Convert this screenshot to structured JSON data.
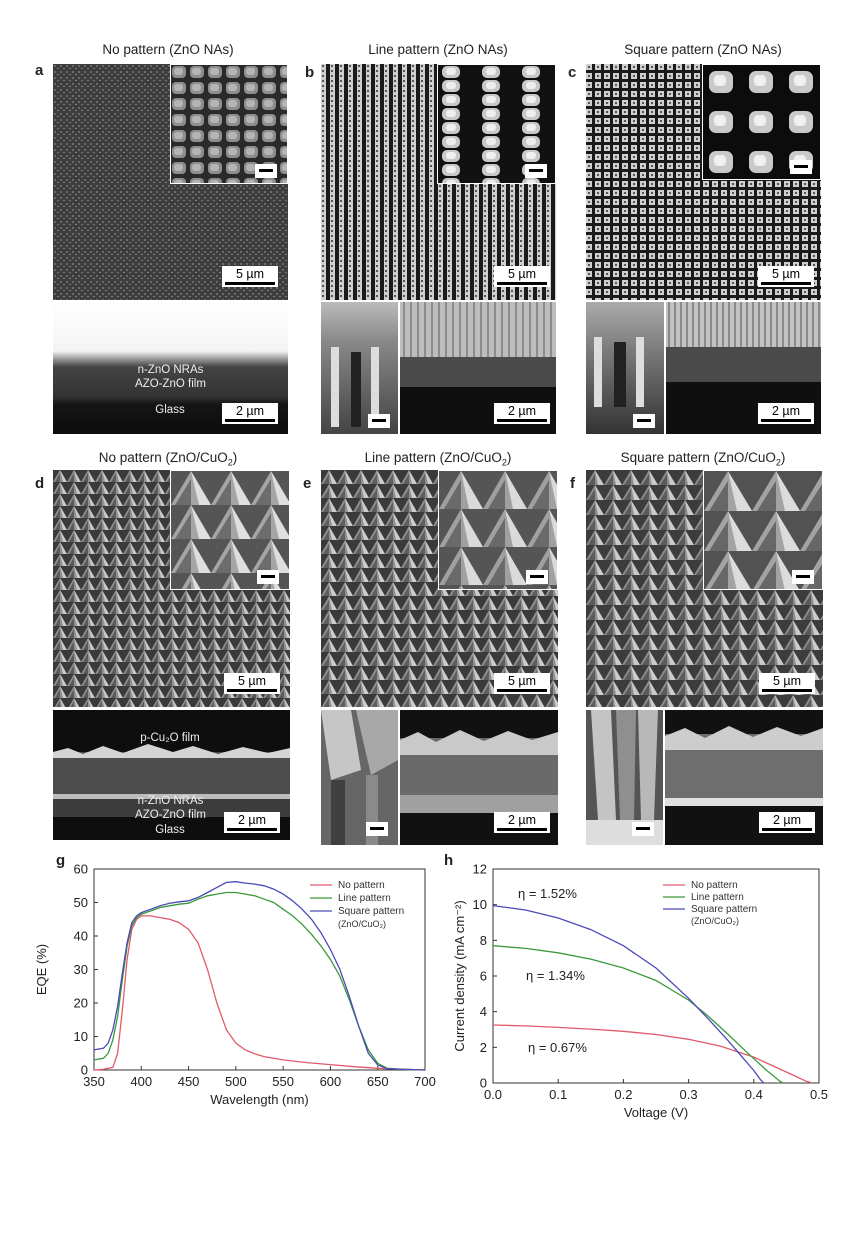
{
  "panels_top": [
    {
      "letter": "a",
      "title": "No pattern (ZnO NAs)",
      "scale_top": "5 µm",
      "scale_bottom": "2 µm",
      "layers": [
        "n-ZnO NRAs",
        "AZO-ZnO film",
        "Glass"
      ]
    },
    {
      "letter": "b",
      "title": "Line pattern (ZnO NAs)",
      "scale_top": "5 µm",
      "scale_bottom": "2 µm"
    },
    {
      "letter": "c",
      "title": "Square pattern (ZnO NAs)",
      "scale_top": "5 µm",
      "scale_bottom": "2 µm"
    }
  ],
  "panels_mid": [
    {
      "letter": "d",
      "title": "No pattern (ZnO/CuO",
      "title_sub": "2",
      "title_end": ")",
      "scale_top": "5 µm",
      "scale_bottom": "2 µm",
      "layers": [
        "p-Cu₂O film",
        "n-ZnO NRAs",
        "AZO-ZnO film",
        "Glass"
      ]
    },
    {
      "letter": "e",
      "title": "Line pattern (ZnO/CuO",
      "title_sub": "2",
      "title_end": ")",
      "scale_top": "5 µm",
      "scale_bottom": "2 µm"
    },
    {
      "letter": "f",
      "title": "Square pattern (ZnO/CuO",
      "title_sub": "2",
      "title_end": ")",
      "scale_top": "5 µm",
      "scale_bottom": "2 µm"
    }
  ],
  "chart_data": [
    {
      "type": "line",
      "panel": "g",
      "xlabel": "Wavelength (nm)",
      "ylabel": "EQE (%)",
      "xlim": [
        350,
        700
      ],
      "ylim": [
        0,
        60
      ],
      "xticks": [
        350,
        400,
        450,
        500,
        550,
        600,
        650,
        700
      ],
      "yticks": [
        0,
        10,
        20,
        30,
        40,
        50,
        60
      ],
      "legend": [
        "No pattern",
        "Line pattern",
        "Square pattern",
        "(ZnO/CuO₂)"
      ],
      "legend_placement": "top-right",
      "series": [
        {
          "name": "No pattern",
          "color": "#e05a6a",
          "x": [
            350,
            360,
            370,
            375,
            380,
            385,
            390,
            395,
            400,
            410,
            420,
            430,
            440,
            450,
            460,
            470,
            480,
            490,
            500,
            510,
            520,
            530,
            550,
            575,
            600,
            625,
            650,
            675,
            700
          ],
          "y": [
            0,
            0.2,
            0.8,
            5,
            18,
            33,
            42,
            45,
            46,
            46,
            45.5,
            45,
            44,
            42,
            38,
            30,
            20,
            12,
            8,
            6,
            4.8,
            4,
            3,
            2.2,
            1.6,
            1,
            0.5,
            0.2,
            0
          ]
        },
        {
          "name": "Line pattern",
          "color": "#3a9a3a",
          "x": [
            350,
            360,
            365,
            370,
            375,
            380,
            385,
            390,
            395,
            400,
            410,
            420,
            430,
            440,
            450,
            460,
            470,
            480,
            490,
            500,
            510,
            520,
            530,
            540,
            550,
            560,
            570,
            580,
            590,
            600,
            610,
            620,
            630,
            640,
            650,
            660,
            675,
            700
          ],
          "y": [
            3,
            3.5,
            5,
            9,
            16,
            27,
            37,
            43,
            45.5,
            46.5,
            47.5,
            48.5,
            49,
            49.5,
            49.8,
            51,
            52,
            52.5,
            53,
            53,
            52.5,
            52,
            51,
            50,
            48,
            46,
            43.5,
            40.5,
            37,
            33,
            28,
            21,
            13,
            6,
            2,
            0.5,
            0.2,
            0
          ]
        },
        {
          "name": "Square pattern",
          "color": "#4a4ab8",
          "x": [
            350,
            360,
            365,
            370,
            375,
            380,
            385,
            390,
            395,
            400,
            410,
            420,
            430,
            440,
            450,
            460,
            470,
            480,
            490,
            500,
            510,
            520,
            530,
            540,
            550,
            560,
            570,
            580,
            590,
            600,
            610,
            620,
            630,
            640,
            650,
            660,
            675,
            700
          ],
          "y": [
            6,
            6.5,
            8,
            12,
            19,
            29,
            38,
            44,
            46,
            47,
            48,
            49,
            49.8,
            50.2,
            50.5,
            51.5,
            53,
            54.5,
            56,
            56.2,
            55.8,
            55.5,
            55,
            54,
            52.5,
            50.5,
            48,
            45,
            41,
            36,
            30,
            22,
            13,
            5,
            1.5,
            0.4,
            0.2,
            0
          ]
        }
      ]
    },
    {
      "type": "line",
      "panel": "h",
      "xlabel": "Voltage (V)",
      "ylabel": "Current density (mA cm⁻²)",
      "xlim": [
        0,
        0.5
      ],
      "ylim": [
        0,
        12
      ],
      "xticks": [
        "0.0",
        "0.1",
        "0.2",
        "0.3",
        "0.4",
        "0.5"
      ],
      "yticks": [
        0,
        2,
        4,
        6,
        8,
        10,
        12
      ],
      "legend": [
        "No  pattern",
        "Line pattern",
        "Square pattern",
        "(ZnO/CuO₂)"
      ],
      "legend_placement": "top-right",
      "annotations": [
        "η = 1.52%",
        "η = 1.34%",
        "η = 0.67%"
      ],
      "series": [
        {
          "name": "No  pattern",
          "color": "#e05a6a",
          "x": [
            0,
            0.05,
            0.1,
            0.15,
            0.2,
            0.25,
            0.3,
            0.35,
            0.4,
            0.43,
            0.46,
            0.48,
            0.49
          ],
          "y": [
            3.25,
            3.2,
            3.12,
            3.02,
            2.9,
            2.72,
            2.45,
            2.05,
            1.45,
            0.95,
            0.45,
            0.1,
            0
          ]
        },
        {
          "name": "Line pattern",
          "color": "#3a9a3a",
          "x": [
            0,
            0.05,
            0.1,
            0.15,
            0.2,
            0.25,
            0.3,
            0.33,
            0.36,
            0.39,
            0.42,
            0.44,
            0.445
          ],
          "y": [
            7.7,
            7.55,
            7.3,
            6.95,
            6.45,
            5.75,
            4.65,
            3.75,
            2.75,
            1.7,
            0.7,
            0.1,
            0
          ]
        },
        {
          "name": "Square pattern",
          "color": "#4a4ab8",
          "x": [
            0,
            0.05,
            0.1,
            0.15,
            0.2,
            0.25,
            0.3,
            0.33,
            0.36,
            0.38,
            0.4,
            0.41,
            0.415
          ],
          "y": [
            9.95,
            9.7,
            9.25,
            8.6,
            7.7,
            6.45,
            4.75,
            3.6,
            2.4,
            1.55,
            0.7,
            0.2,
            0
          ]
        }
      ]
    }
  ]
}
